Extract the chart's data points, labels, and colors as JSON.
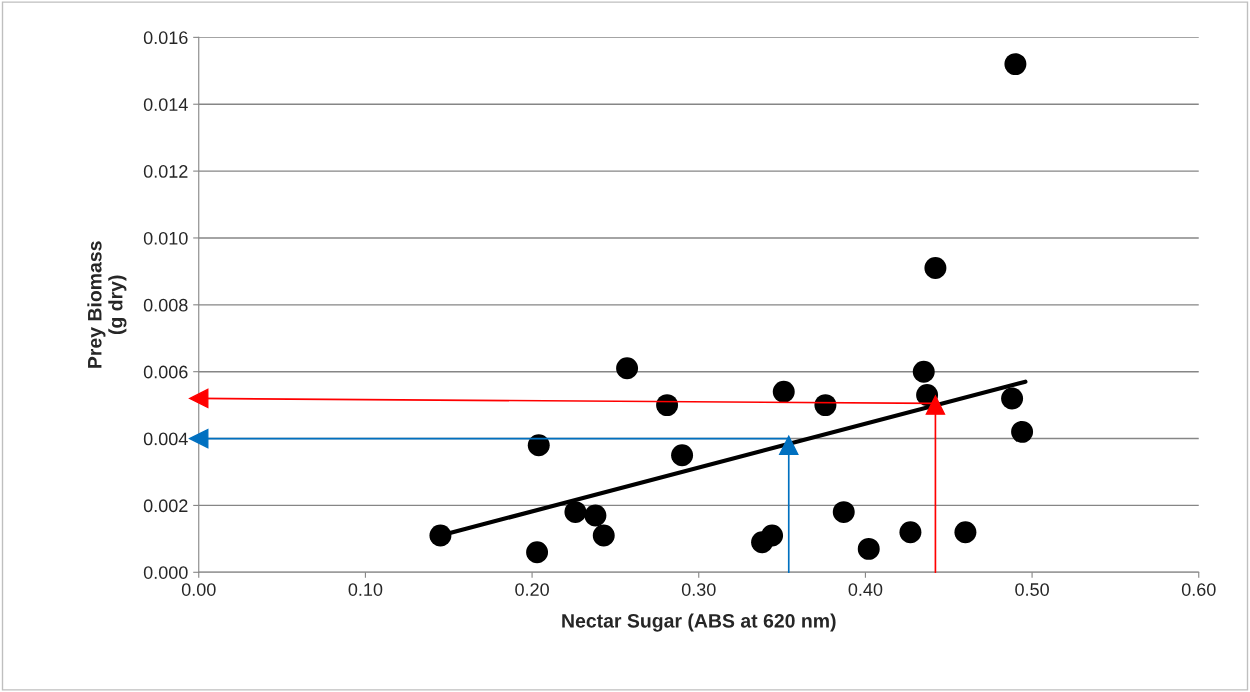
{
  "chart_data": {
    "type": "scatter",
    "xlabel": "Nectar Sugar (ABS at 620 nm)",
    "ylabel": "Prey Biomass\n(g dry)",
    "xlim": [
      0,
      0.6
    ],
    "xticks": [
      {
        "value": 0,
        "label": "0.00"
      },
      {
        "value": 0.1,
        "label": "0.10"
      },
      {
        "value": 0.2,
        "label": "0.20"
      },
      {
        "value": 0.3,
        "label": "0.30"
      },
      {
        "value": 0.4,
        "label": "0.40"
      },
      {
        "value": 0.5,
        "label": "0.50"
      },
      {
        "value": 0.6,
        "label": "0.60"
      }
    ],
    "ylim": [
      0,
      0.016
    ],
    "yticks": [
      {
        "value": 0,
        "label": "0.000"
      },
      {
        "value": 0.002,
        "label": "0.002"
      },
      {
        "value": 0.004,
        "label": "0.004"
      },
      {
        "value": 0.006,
        "label": "0.006"
      },
      {
        "value": 0.008,
        "label": "0.008"
      },
      {
        "value": 0.01,
        "label": "0.010"
      },
      {
        "value": 0.012,
        "label": "0.012"
      },
      {
        "value": 0.014,
        "label": "0.014"
      },
      {
        "value": 0.016,
        "label": "0.016"
      }
    ],
    "grid": "y",
    "marker": "circle",
    "series": [
      {
        "color": "#000000",
        "x": [
          0.145,
          0.203,
          0.204,
          0.226,
          0.238,
          0.243,
          0.257,
          0.281,
          0.29,
          0.338,
          0.344,
          0.351,
          0.376,
          0.387,
          0.402,
          0.427,
          0.435,
          0.437,
          0.442,
          0.46,
          0.488,
          0.49,
          0.493,
          0.494
        ],
        "values": [
          0.0011,
          0.0006,
          0.0038,
          0.0018,
          0.0017,
          0.0011,
          0.0061,
          0.005,
          0.0035,
          0.0009,
          0.0011,
          0.0054,
          0.005,
          0.0018,
          0.0007,
          0.0012,
          0.006,
          0.0053,
          0.0091,
          0.0012,
          0.0052,
          0.0152,
          null,
          0.0042
        ]
      },
      {
        "type": "line",
        "marker": "none",
        "color": "#000000",
        "x": [
          0.145,
          0.496
        ],
        "values": [
          0.0011,
          0.0057
        ]
      },
      {
        "type": "line",
        "marker": "triangle",
        "color": "#ff0000",
        "x": [
          0.442,
          0.0
        ],
        "values": [
          0.00505,
          0.0052
        ]
      },
      {
        "type": "line",
        "marker": "triangle",
        "color": "#ff0000",
        "x": [
          0.442,
          0.442
        ],
        "values": [
          0.0,
          0.005
        ]
      },
      {
        "type": "line",
        "marker": "triangle",
        "color": "#0070c0",
        "x": [
          0.354,
          0.0
        ],
        "values": [
          0.004,
          0.004
        ]
      },
      {
        "type": "line",
        "marker": "triangle",
        "color": "#0070c0",
        "x": [
          0.354,
          0.354
        ],
        "values": [
          0.0,
          0.0038
        ]
      }
    ]
  }
}
